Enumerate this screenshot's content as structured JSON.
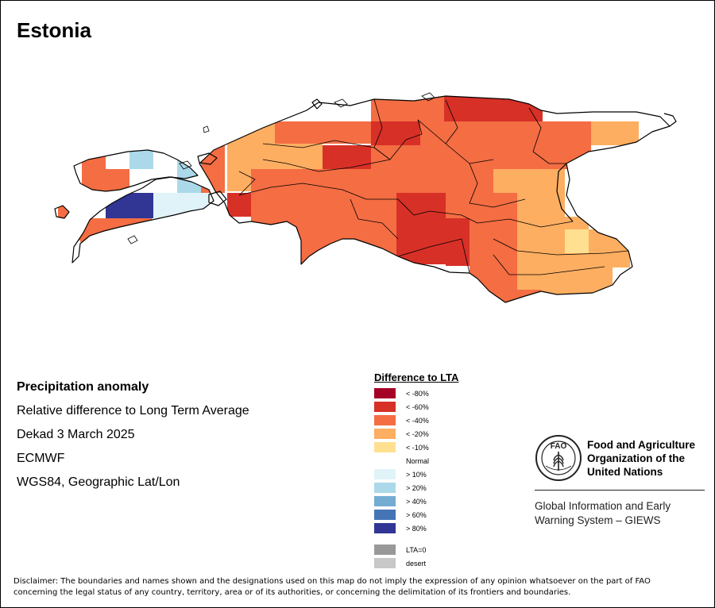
{
  "title": "Estonia",
  "info": {
    "heading": "Precipitation anomaly",
    "line1": "Relative difference to Long Term Average",
    "line2": "Dekad 3 March 2025",
    "line3": "ECMWF",
    "line4": "WGS84, Geographic Lat/Lon"
  },
  "legend": {
    "title": "Difference to LTA",
    "dry": [
      {
        "label": "< -80%",
        "color": "#a50026"
      },
      {
        "label": "< -60%",
        "color": "#d73027"
      },
      {
        "label": "< -40%",
        "color": "#f46d43"
      },
      {
        "label": "< -20%",
        "color": "#fdae61"
      },
      {
        "label": "< -10%",
        "color": "#fee090"
      }
    ],
    "normal_label": "Normal",
    "wet": [
      {
        "label": "> 10%",
        "color": "#e0f3f8"
      },
      {
        "label": "> 20%",
        "color": "#abd9e9"
      },
      {
        "label": "> 40%",
        "color": "#74add1"
      },
      {
        "label": "> 60%",
        "color": "#4575b4"
      },
      {
        "label": "> 80%",
        "color": "#313695"
      }
    ],
    "other": [
      {
        "label": "LTA=0",
        "color": "#999999"
      },
      {
        "label": "desert",
        "color": "#c8c8c8"
      }
    ]
  },
  "org": {
    "emblem_icon": "fao-emblem-icon",
    "name_line1": "Food and Agriculture",
    "name_line2": "Organization of the",
    "name_line3": "United Nations",
    "system_line1": "Global Information and Early",
    "system_line2": "Warning System – GIEWS"
  },
  "disclaimer_line1": "Disclaimer: The boundaries and names shown and the designations used on this map do not imply the expression of any opinion whatsoever on the part of FAO",
  "disclaimer_line2": "concerning the legal status of any country, territory, area or of its authorities, or concerning the delimitation of its frontiers and boundaries."
}
